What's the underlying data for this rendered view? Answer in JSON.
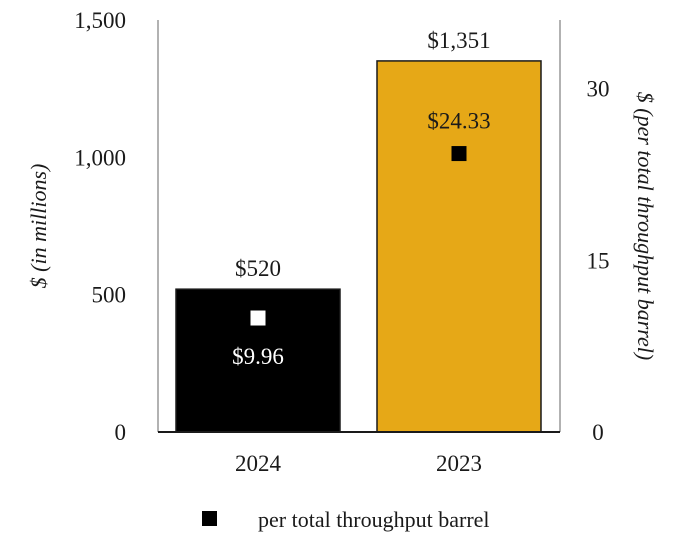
{
  "chart_data": {
    "type": "bar",
    "categories": [
      "2024",
      "2023"
    ],
    "series": [
      {
        "values": [
          520,
          1351
        ],
        "axis": "left",
        "colors": [
          "#000000",
          "#E6A817"
        ],
        "labels": [
          "$520",
          "$1,351"
        ]
      },
      {
        "name": "per total throughput barrel",
        "type": "marker",
        "values": [
          9.96,
          24.33
        ],
        "axis": "right",
        "marker_colors": [
          "#ffffff",
          "#000000"
        ],
        "labels": [
          "$9.96",
          "$24.33"
        ]
      }
    ],
    "ylabel": "$ (in millions)",
    "y2label": "$ (per total throughput barrel)",
    "ylim": [
      0,
      1500
    ],
    "y2lim": [
      0,
      36
    ],
    "yticks": [
      "0",
      "500",
      "1,000",
      "1,500"
    ],
    "y2ticks": [
      "0",
      "15",
      "30"
    ],
    "legend": {
      "position": "bottom",
      "entries": [
        "per total throughput barrel"
      ]
    },
    "grid": false
  }
}
